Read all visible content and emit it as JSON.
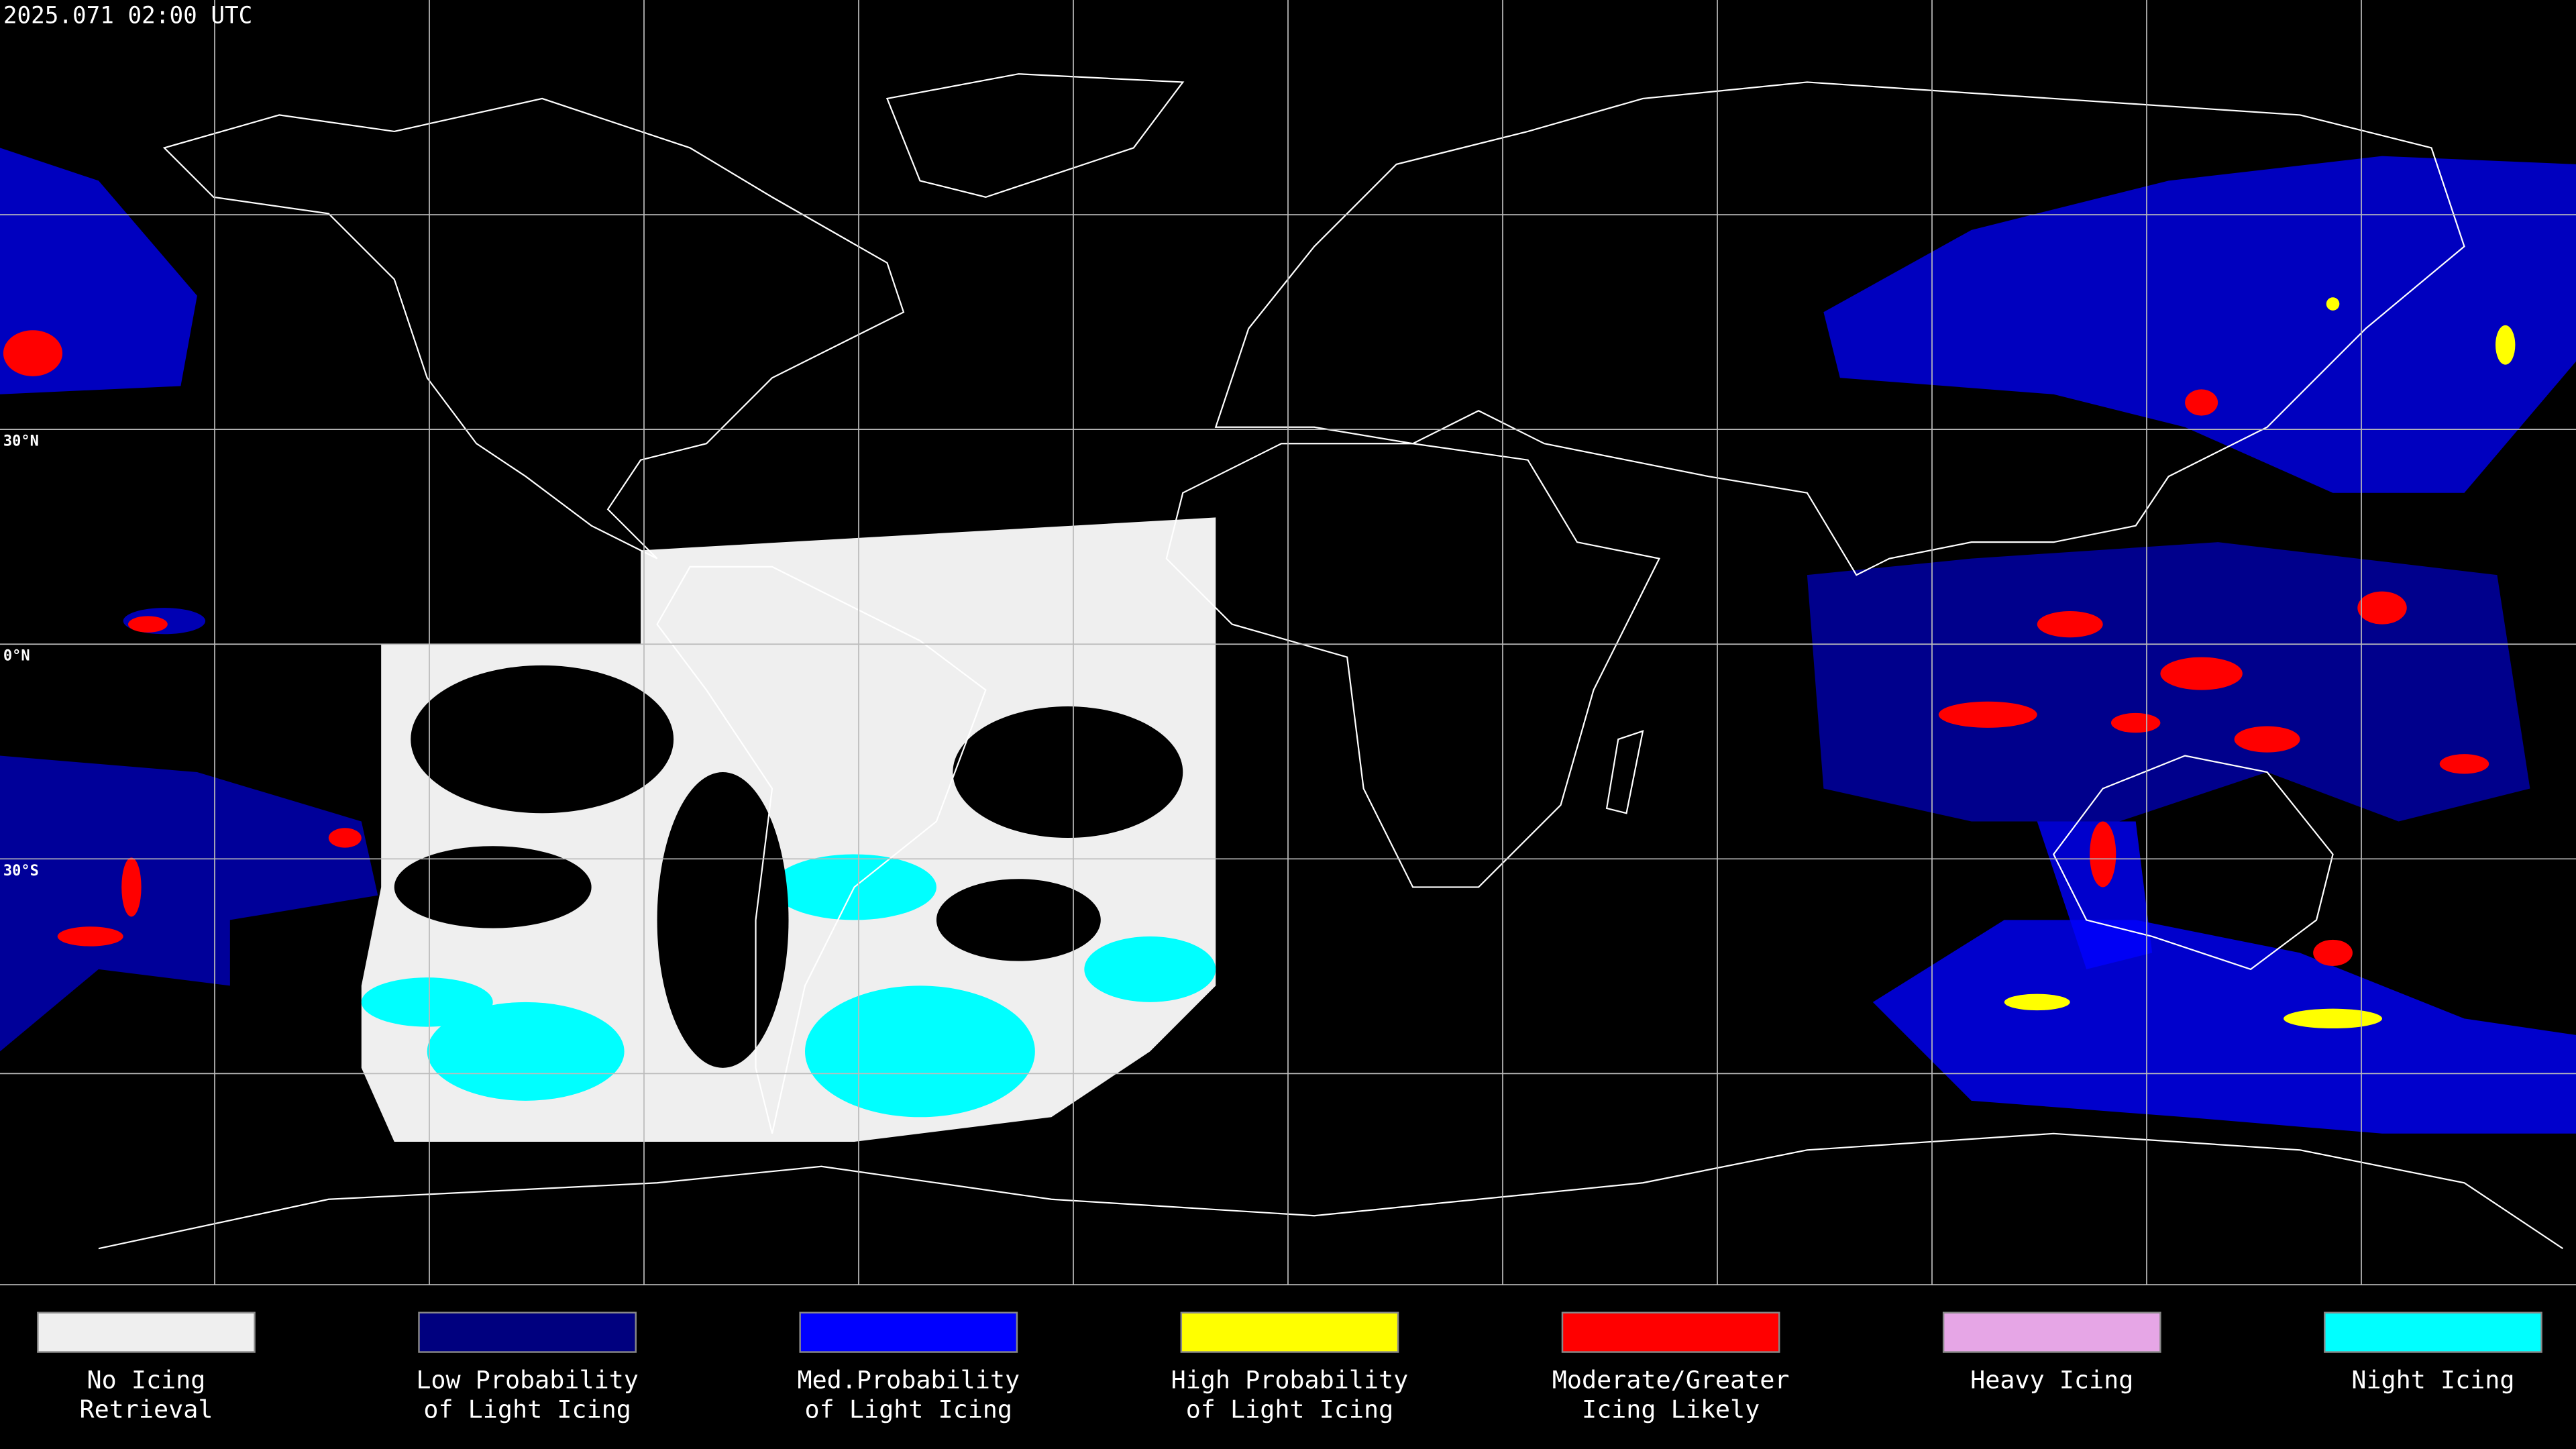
{
  "header": {
    "timestamp": "2025.071 02:00 UTC"
  },
  "map": {
    "latitude_labels": [
      "30°N",
      "0°N",
      "30°S"
    ]
  },
  "legend": {
    "items": [
      {
        "lines": [
          "No Icing",
          "Retrieval"
        ],
        "color": "#efefef"
      },
      {
        "lines": [
          "Low Probability",
          "of Light Icing"
        ],
        "color": "#00007f"
      },
      {
        "lines": [
          "Med.Probability",
          "of Light Icing"
        ],
        "color": "#0000ff"
      },
      {
        "lines": [
          "High Probability",
          "of Light Icing"
        ],
        "color": "#ffff00"
      },
      {
        "lines": [
          "Moderate/Greater",
          "Icing Likely"
        ],
        "color": "#ff0000"
      },
      {
        "lines": [
          "Heavy Icing"
        ],
        "color": "#e6a6e6"
      },
      {
        "lines": [
          "Night Icing"
        ],
        "color": "#00ffff"
      }
    ]
  }
}
